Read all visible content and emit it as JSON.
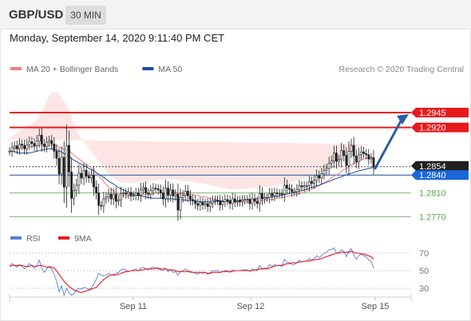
{
  "header": {
    "pair": "GBP/USD",
    "timeframe": "30 MIN"
  },
  "timestamp": "Monday, September 14, 2020 9:11:40 PM CET",
  "copyright": "Research © 2020 Trading Central",
  "colors": {
    "resistance": "#e8191b",
    "support": "#5aa84f",
    "pivot": "#1c4f9c",
    "arrow": "#2a5fa5",
    "ma20": "#f08080",
    "ma50": "#1c4f9c",
    "band": "#fbd3d3",
    "candle": "#1f1f1f",
    "rsi": "#5b7fd6",
    "rsi_ma": "#e8191b"
  },
  "chart_data": [
    {
      "type": "candlestick",
      "legend": [
        {
          "name": "MA 20 + Bollinger Bands",
          "color": "#f08080"
        },
        {
          "name": "MA 50",
          "color": "#1c4f9c"
        }
      ],
      "x_ticks": [
        "Sep 11",
        "Sep 12",
        "Sep 15"
      ],
      "ylim": [
        1.2745,
        1.3
      ],
      "levels": [
        {
          "label": "1.2945",
          "value": 1.2945,
          "kind": "resistance"
        },
        {
          "label": "1.2920",
          "value": 1.292,
          "kind": "resistance"
        },
        {
          "label": "1.2854",
          "value": 1.2854,
          "kind": "last"
        },
        {
          "label": "1.2840",
          "value": 1.284,
          "kind": "pivot"
        },
        {
          "label": "1.2810",
          "value": 1.281,
          "kind": "support"
        },
        {
          "label": "1.2770",
          "value": 1.277,
          "kind": "support"
        }
      ],
      "close": [
        1.288,
        1.2886,
        1.2889,
        1.2884,
        1.2892,
        1.289,
        1.2884,
        1.2891,
        1.2896,
        1.2893,
        1.2889,
        1.2897,
        1.2907,
        1.2892,
        1.2888,
        1.2895,
        1.2898,
        1.2892,
        1.288,
        1.2868,
        1.2842,
        1.287,
        1.282,
        1.289,
        1.2845,
        1.2801,
        1.2814,
        1.2823,
        1.2843,
        1.2835,
        1.2848,
        1.2838,
        1.2835,
        1.284,
        1.282,
        1.281,
        1.2789,
        1.2788,
        1.28,
        1.2803,
        1.2808,
        1.28,
        1.2808,
        1.2796,
        1.2798,
        1.2809,
        1.281,
        1.2808,
        1.2811,
        1.2805,
        1.2806,
        1.281,
        1.2806,
        1.2816,
        1.2819,
        1.281,
        1.2808,
        1.2814,
        1.2818,
        1.2817,
        1.2815,
        1.281,
        1.28,
        1.2818,
        1.2806,
        1.2815,
        1.2805,
        1.2808,
        1.2781,
        1.2802,
        1.2806,
        1.2813,
        1.2805,
        1.2799,
        1.2797,
        1.2792,
        1.2789,
        1.2794,
        1.279,
        1.2792,
        1.2787,
        1.2793,
        1.2797,
        1.2798,
        1.2797,
        1.279,
        1.2795,
        1.2799,
        1.2797,
        1.2792,
        1.28,
        1.2795,
        1.2797,
        1.2795,
        1.2798,
        1.2799,
        1.2799,
        1.2792,
        1.28,
        1.2796,
        1.2792,
        1.2809,
        1.28,
        1.2802,
        1.2802,
        1.2809,
        1.2805,
        1.281,
        1.2809,
        1.2809,
        1.2808,
        1.2823,
        1.2818,
        1.2816,
        1.2812,
        1.2812,
        1.2816,
        1.2822,
        1.282,
        1.2822,
        1.2822,
        1.2829,
        1.2826,
        1.2831,
        1.2839,
        1.2835,
        1.2842,
        1.2848,
        1.2851,
        1.286,
        1.2864,
        1.2877,
        1.2863,
        1.2866,
        1.2881,
        1.2873,
        1.2856,
        1.288,
        1.289,
        1.2872,
        1.2862,
        1.2874,
        1.2879,
        1.2876,
        1.2874,
        1.2867,
        1.2869,
        1.2854
      ],
      "ma20": [
        1.288,
        1.2883,
        1.2885,
        1.2885,
        1.2886,
        1.2887,
        1.2887,
        1.2887,
        1.2888,
        1.2888,
        1.2888,
        1.2889,
        1.289,
        1.289,
        1.289,
        1.289,
        1.289,
        1.289,
        1.289,
        1.2889,
        1.2887,
        1.2886,
        1.2883,
        1.2883,
        1.2881,
        1.2877,
        1.2873,
        1.287,
        1.2867,
        1.2864,
        1.2861,
        1.2858,
        1.2855,
        1.2852,
        1.2848,
        1.2844,
        1.2839,
        1.2834,
        1.2829,
        1.2824,
        1.282,
        1.2816,
        1.2813,
        1.281,
        1.2807,
        1.2806,
        1.2806,
        1.2805,
        1.2805,
        1.2805,
        1.2805,
        1.2806,
        1.2806,
        1.2807,
        1.2807,
        1.2807,
        1.2808,
        1.2808,
        1.2809,
        1.281,
        1.281,
        1.281,
        1.281,
        1.2811,
        1.2811,
        1.2811,
        1.2811,
        1.2811,
        1.2809,
        1.2809,
        1.2808,
        1.2808,
        1.2808,
        1.2807,
        1.2807,
        1.2806,
        1.2805,
        1.2804,
        1.2804,
        1.2803,
        1.2802,
        1.2801,
        1.28,
        1.2799,
        1.2798,
        1.2797,
        1.2796,
        1.2796,
        1.2795,
        1.2794,
        1.2794,
        1.2794,
        1.2794,
        1.2795,
        1.2795,
        1.2795,
        1.2795,
        1.2795,
        1.2796,
        1.2796,
        1.2796,
        1.2797,
        1.2797,
        1.2798,
        1.2798,
        1.2799,
        1.2799,
        1.28,
        1.2801,
        1.2801,
        1.2802,
        1.2803,
        1.2804,
        1.2805,
        1.2806,
        1.2807,
        1.2808,
        1.2809,
        1.281,
        1.2811,
        1.2813,
        1.2815,
        1.2816,
        1.2818,
        1.282,
        1.2822,
        1.2824,
        1.2827,
        1.2829,
        1.2832,
        1.2835,
        1.2838,
        1.284,
        1.2843,
        1.2846,
        1.2849,
        1.2851,
        1.2854,
        1.2857,
        1.2859,
        1.2861,
        1.2863,
        1.2865,
        1.2867,
        1.2868,
        1.2869,
        1.287,
        1.287
      ],
      "ma50": [
        1.288,
        1.288,
        1.2879,
        1.2878,
        1.2877,
        1.2877,
        1.2877,
        1.2877,
        1.2877,
        1.2878,
        1.2879,
        1.288,
        1.2881,
        1.2882,
        1.2883,
        1.2884,
        1.2884,
        1.2884,
        1.2883,
        1.2882,
        1.288,
        1.2879,
        1.2876,
        1.2875,
        1.2872,
        1.2868,
        1.2865,
        1.2863,
        1.286,
        1.2858,
        1.2856,
        1.2854,
        1.2851,
        1.2849,
        1.2847,
        1.2844,
        1.2841,
        1.2839,
        1.2836,
        1.2833,
        1.283,
        1.2827,
        1.2825,
        1.2822,
        1.2819,
        1.2817,
        1.2815,
        1.2813,
        1.2811,
        1.2809,
        1.2808,
        1.2807,
        1.2805,
        1.2805,
        1.2804,
        1.2803,
        1.2802,
        1.2802,
        1.2801,
        1.2801,
        1.2801,
        1.2801,
        1.2801,
        1.28,
        1.28,
        1.28,
        1.28,
        1.2799,
        1.2799,
        1.2799,
        1.2798,
        1.2798,
        1.2797,
        1.2797,
        1.2797,
        1.2796,
        1.2796,
        1.2795,
        1.2795,
        1.2795,
        1.2795,
        1.2795,
        1.2795,
        1.2795,
        1.2796,
        1.2796,
        1.2796,
        1.2796,
        1.2796,
        1.2797,
        1.2797,
        1.2797,
        1.2797,
        1.2798,
        1.2798,
        1.2798,
        1.2799,
        1.2799,
        1.2799,
        1.28,
        1.28,
        1.2801,
        1.2801,
        1.2802,
        1.2802,
        1.2803,
        1.2803,
        1.2804,
        1.2804,
        1.2805,
        1.2806,
        1.2807,
        1.2808,
        1.2809,
        1.281,
        1.2811,
        1.2812,
        1.2813,
        1.2814,
        1.2815,
        1.2816,
        1.2818,
        1.2819,
        1.282,
        1.2822,
        1.2823,
        1.2825,
        1.2826,
        1.2828,
        1.2829,
        1.2831,
        1.2833,
        1.2834,
        1.2836,
        1.2837,
        1.2839,
        1.284,
        1.2842,
        1.2843,
        1.2844,
        1.2846,
        1.2847,
        1.2848,
        1.2849,
        1.285,
        1.2851,
        1.2852,
        1.2853
      ],
      "band_width": [
        0.002,
        0.0022,
        0.0024,
        0.0026,
        0.0028,
        0.003,
        0.0032,
        0.0034,
        0.0036,
        0.0038,
        0.004,
        0.0044,
        0.0048,
        0.0055,
        0.0065,
        0.0075,
        0.0082,
        0.0088,
        0.009,
        0.009,
        0.0088,
        0.0085,
        0.008,
        0.0075,
        0.0068,
        0.006,
        0.0052,
        0.0045,
        0.004,
        0.0036,
        0.0034,
        0.0032,
        0.003,
        0.0028,
        0.0026,
        0.0025,
        0.0024,
        0.0023,
        0.0022,
        0.0022,
        0.0022,
        0.0022,
        0.0022,
        0.0022,
        0.0022,
        0.0022,
        0.0022,
        0.0022,
        0.0022,
        0.0022,
        0.0022,
        0.0022,
        0.0022,
        0.0022,
        0.0022,
        0.0022,
        0.0022,
        0.0022,
        0.0022,
        0.0022,
        0.0022,
        0.0022,
        0.0022,
        0.0022,
        0.0022,
        0.0022,
        0.0022,
        0.0022,
        0.0022,
        0.0022,
        0.0022,
        0.0022,
        0.0022,
        0.0022,
        0.0022,
        0.0022,
        0.0022,
        0.0022,
        0.0022,
        0.0022,
        0.0022,
        0.0022,
        0.0022,
        0.0022,
        0.0022,
        0.0022,
        0.0022,
        0.0022,
        0.0022,
        0.0022,
        0.0022,
        0.0022,
        0.0022,
        0.0022,
        0.0022,
        0.0022,
        0.0022,
        0.0022,
        0.0022,
        0.0022,
        0.0022,
        0.0022,
        0.0022,
        0.0022,
        0.0022,
        0.0022,
        0.0022,
        0.0022,
        0.0022,
        0.0022,
        0.0022,
        0.0022,
        0.0022,
        0.0022,
        0.0022,
        0.0022,
        0.0022,
        0.0022,
        0.0022,
        0.0022,
        0.0022,
        0.0022,
        0.0022,
        0.0022,
        0.0022,
        0.0022,
        0.0022,
        0.0022,
        0.0022,
        0.0022,
        0.0022,
        0.0022,
        0.0022,
        0.0022,
        0.0022,
        0.0022,
        0.0022,
        0.0022,
        0.0022,
        0.0022,
        0.0022,
        0.0022,
        0.0022,
        0.0022,
        0.0022,
        0.0022,
        0.0022
      ]
    },
    {
      "type": "line",
      "legend": [
        {
          "name": "RSI",
          "color": "#5b7fd6"
        },
        {
          "name": "9MA",
          "color": "#e8191b"
        }
      ],
      "ylim": [
        20,
        80
      ],
      "y_ticks": [
        70,
        50,
        30
      ],
      "rsi": [
        55,
        58,
        56,
        54,
        57,
        55,
        52,
        55,
        58,
        56,
        53,
        56,
        62,
        53,
        48,
        52,
        55,
        52,
        46,
        38,
        26,
        33,
        22,
        30,
        25,
        22,
        24,
        28,
        30,
        29,
        31,
        30,
        29,
        30,
        35,
        40,
        47,
        45,
        44,
        45,
        47,
        45,
        46,
        47,
        48,
        51,
        52,
        51,
        49,
        50,
        51,
        52,
        50,
        53,
        54,
        52,
        51,
        53,
        54,
        53,
        52,
        51,
        50,
        53,
        49,
        51,
        48,
        49,
        45,
        49,
        50,
        52,
        50,
        48,
        48,
        47,
        46,
        48,
        47,
        48,
        46,
        48,
        50,
        50,
        50,
        48,
        49,
        50,
        50,
        48,
        51,
        50,
        50,
        50,
        51,
        51,
        51,
        49,
        52,
        51,
        50,
        56,
        52,
        53,
        53,
        57,
        55,
        57,
        56,
        56,
        55,
        63,
        60,
        59,
        57,
        57,
        59,
        62,
        60,
        61,
        61,
        64,
        62,
        64,
        67,
        65,
        67,
        70,
        71,
        74,
        74,
        76,
        70,
        71,
        74,
        72,
        66,
        72,
        75,
        68,
        63,
        67,
        69,
        67,
        66,
        62,
        61,
        53
      ],
      "rsi_ma": [
        55,
        56,
        56,
        56,
        56,
        56,
        55,
        55,
        55,
        56,
        55,
        55,
        56,
        56,
        55,
        54,
        54,
        54,
        53,
        50,
        46,
        42,
        38,
        35,
        32,
        30,
        28,
        27,
        26,
        25,
        26,
        27,
        28,
        29,
        30,
        31,
        34,
        37,
        40,
        42,
        44,
        45,
        45,
        45,
        46,
        47,
        48,
        49,
        49,
        50,
        50,
        50,
        50,
        51,
        51,
        52,
        52,
        52,
        52,
        53,
        53,
        52,
        52,
        52,
        51,
        51,
        51,
        50,
        49,
        49,
        49,
        49,
        49,
        49,
        48,
        48,
        48,
        48,
        48,
        48,
        47,
        47,
        48,
        48,
        48,
        48,
        49,
        49,
        49,
        49,
        49,
        50,
        50,
        50,
        50,
        50,
        50,
        50,
        50,
        51,
        51,
        52,
        52,
        52,
        52,
        53,
        54,
        55,
        56,
        56,
        56,
        57,
        58,
        58,
        59,
        59,
        59,
        60,
        60,
        61,
        61,
        61,
        62,
        62,
        63,
        63,
        64,
        65,
        66,
        67,
        68,
        69,
        70,
        70,
        71,
        71,
        71,
        71,
        72,
        71,
        70,
        70,
        69,
        69,
        68,
        67,
        66,
        63
      ]
    }
  ]
}
